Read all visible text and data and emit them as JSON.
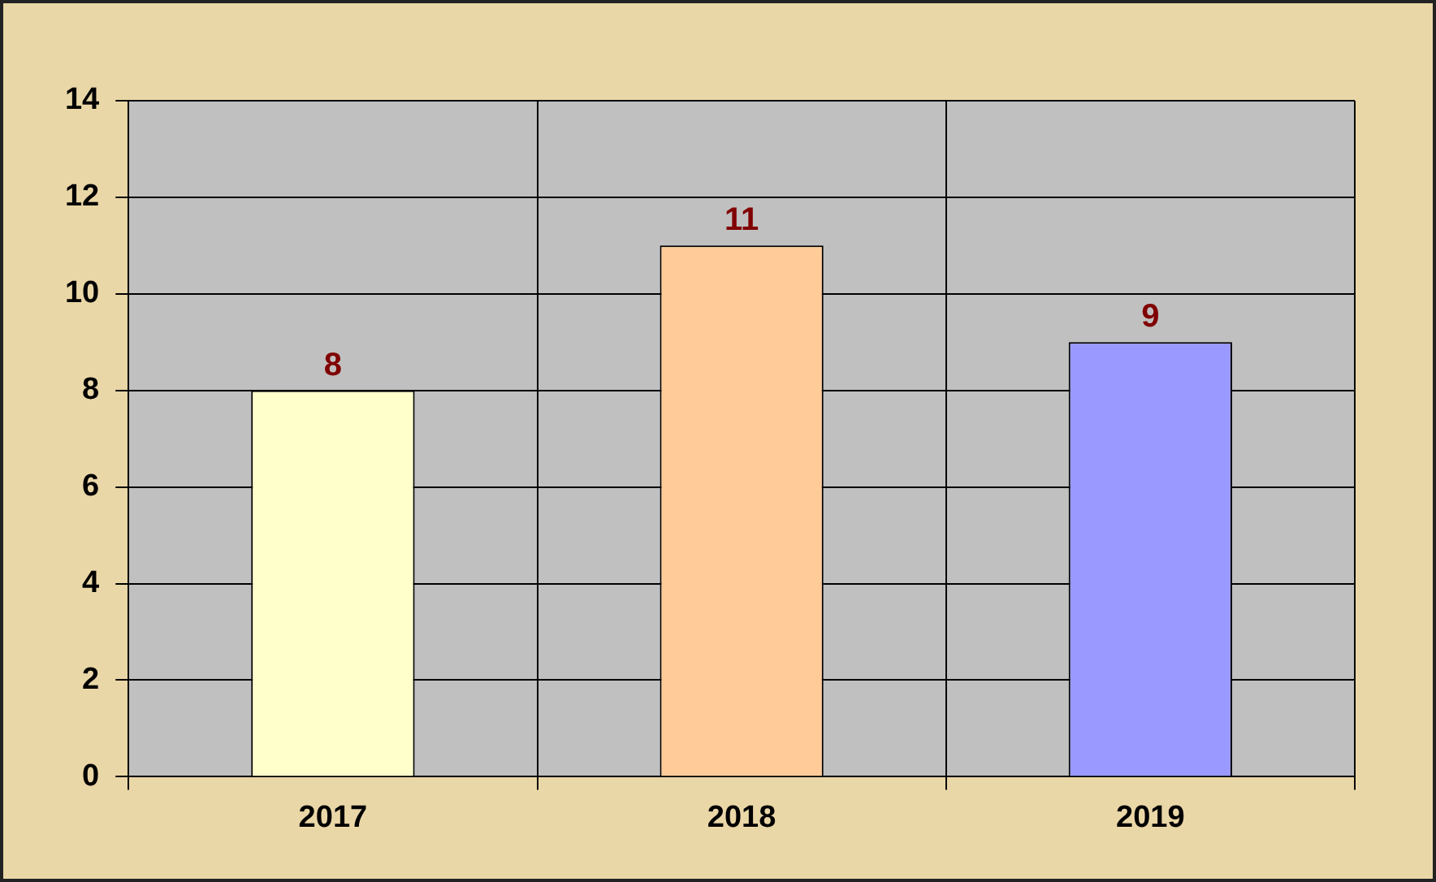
{
  "chart_data": {
    "type": "bar",
    "categories": [
      "2017",
      "2018",
      "2019"
    ],
    "values": [
      8,
      11,
      9
    ],
    "colors": [
      "#ffffcc",
      "#ffcc99",
      "#9999ff"
    ],
    "ylim": [
      0,
      14
    ],
    "yticks": [
      0,
      2,
      4,
      6,
      8,
      10,
      12,
      14
    ],
    "grid": true,
    "data_labels": true
  }
}
